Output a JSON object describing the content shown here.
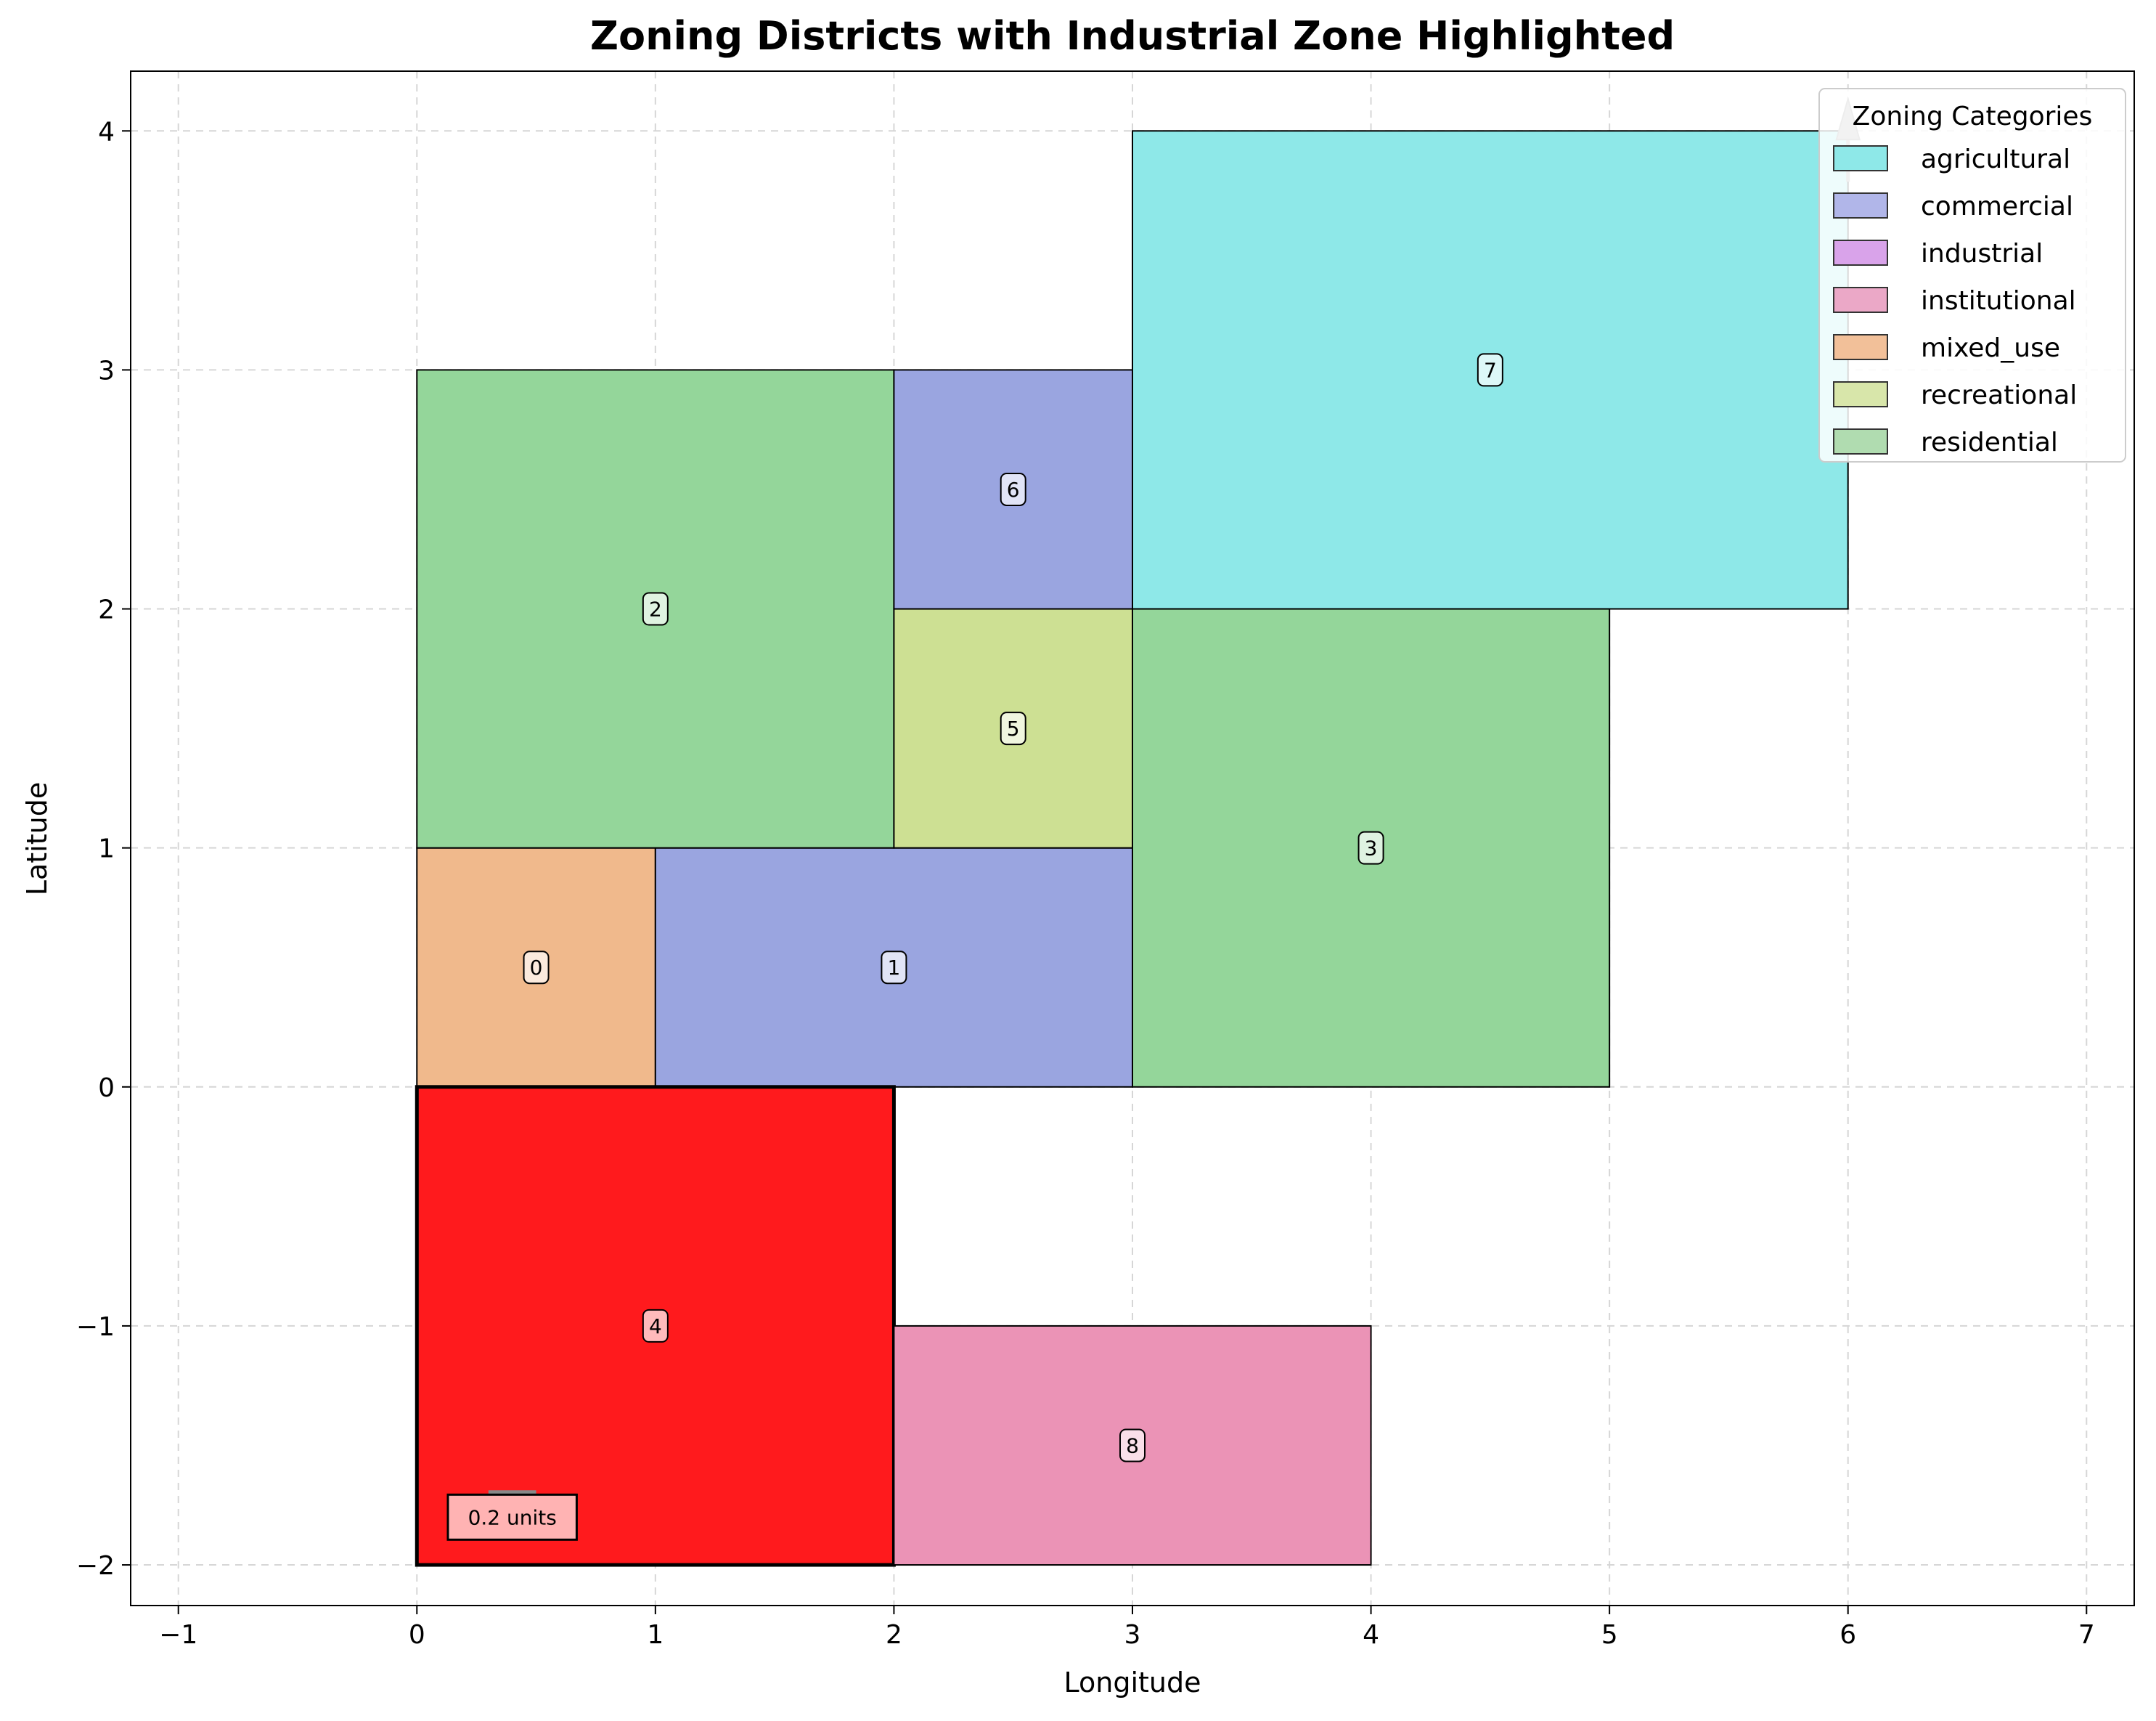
{
  "chart_data": {
    "type": "rectangles",
    "title": "Zoning Districts with Industrial Zone Highlighted",
    "xlabel": "Longitude",
    "ylabel": "Latitude",
    "xlim": [
      -1.2,
      7.2
    ],
    "ylim": [
      -2.17,
      4.25
    ],
    "xticks": [
      -1,
      0,
      1,
      2,
      3,
      4,
      5,
      6,
      7
    ],
    "yticks": [
      -2,
      -1,
      0,
      1,
      2,
      3,
      4
    ],
    "grid": true,
    "legend_position": "top-right",
    "legend": {
      "title": "Zoning Categories",
      "entries": [
        {
          "label": "agricultural",
          "color": "#8ee8e8"
        },
        {
          "label": "commercial",
          "color": "#b1b6e9"
        },
        {
          "label": "industrial",
          "color": "#d9a3ea"
        },
        {
          "label": "institutional",
          "color": "#eba8c7"
        },
        {
          "label": "mixed_use",
          "color": "#f2c099"
        },
        {
          "label": "recreational",
          "color": "#d8e6aa"
        },
        {
          "label": "residential",
          "color": "#b0dcb0"
        }
      ]
    },
    "districts": [
      {
        "id": "0",
        "category": "mixed_use",
        "x0": 0,
        "y0": 0,
        "x1": 1,
        "y1": 1,
        "color": "#f0b98c"
      },
      {
        "id": "1",
        "category": "commercial",
        "x0": 1,
        "y0": 0,
        "x1": 3,
        "y1": 1,
        "color": "#9aa5e0"
      },
      {
        "id": "2",
        "category": "residential",
        "x0": 0,
        "y0": 1,
        "x1": 2,
        "y1": 3,
        "color": "#94d69a"
      },
      {
        "id": "3",
        "category": "residential",
        "x0": 3,
        "y0": 0,
        "x1": 5,
        "y1": 2,
        "color": "#94d69a"
      },
      {
        "id": "4",
        "category": "industrial",
        "x0": 0,
        "y0": -2,
        "x1": 2,
        "y1": 0,
        "color": "#ff1a1d",
        "highlighted": true
      },
      {
        "id": "5",
        "category": "recreational",
        "x0": 2,
        "y0": 1,
        "x1": 3,
        "y1": 2,
        "color": "#cde093"
      },
      {
        "id": "6",
        "category": "commercial",
        "x0": 2,
        "y0": 2,
        "x1": 3,
        "y1": 3,
        "color": "#9aa5e0"
      },
      {
        "id": "7",
        "category": "agricultural",
        "x0": 3,
        "y0": 2,
        "x1": 6,
        "y1": 4,
        "color": "#8ee8e8"
      },
      {
        "id": "8",
        "category": "institutional",
        "x0": 2,
        "y0": -2,
        "x1": 4,
        "y1": -1,
        "color": "#eb93b6"
      }
    ],
    "annotations": {
      "scale_bar_label": "0.2 units",
      "scale_bar_length": 0.2,
      "north_arrow_x": 6,
      "north_arrow_y": 4
    }
  }
}
